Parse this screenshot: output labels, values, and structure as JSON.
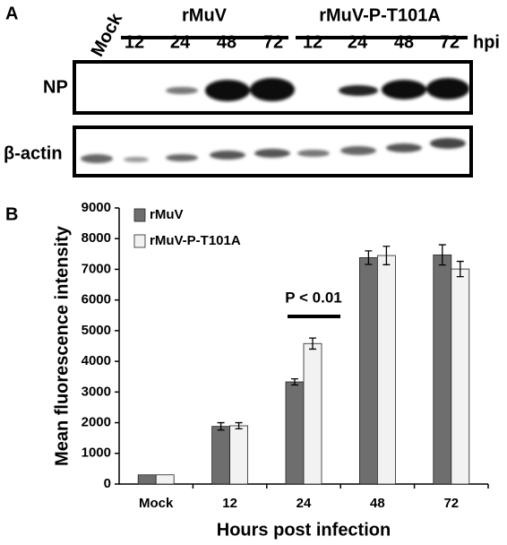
{
  "panel_a": {
    "label": "A",
    "mock": "Mock",
    "groups": [
      {
        "name": "rMuV",
        "times": [
          "12",
          "24",
          "48",
          "72"
        ]
      },
      {
        "name": "rMuV-P-T101A",
        "times": [
          "12",
          "24",
          "48",
          "72"
        ]
      }
    ],
    "unit": "hpi",
    "blots": [
      "NP",
      "β-actin"
    ]
  },
  "chart_data": {
    "type": "bar",
    "panel_label": "B",
    "categories": [
      "Mock",
      "12",
      "24",
      "48",
      "72"
    ],
    "series": [
      {
        "name": "rMuV",
        "color": "#6e6e6e",
        "values": [
          300,
          1880,
          3330,
          7380,
          7470
        ],
        "errors": [
          0,
          120,
          100,
          220,
          330
        ]
      },
      {
        "name": "rMuV-P-T101A",
        "color": "#f2f2f2",
        "values": [
          300,
          1900,
          4580,
          7450,
          7010
        ],
        "errors": [
          0,
          100,
          180,
          300,
          250
        ]
      }
    ],
    "ylim": [
      0,
      9000
    ],
    "yticks": [
      0,
      1000,
      2000,
      3000,
      4000,
      5000,
      6000,
      7000,
      8000,
      9000
    ],
    "y_label": "Mean fluorescence intensity",
    "x_label": "Hours post infection",
    "annotation": "P < 0.01"
  }
}
